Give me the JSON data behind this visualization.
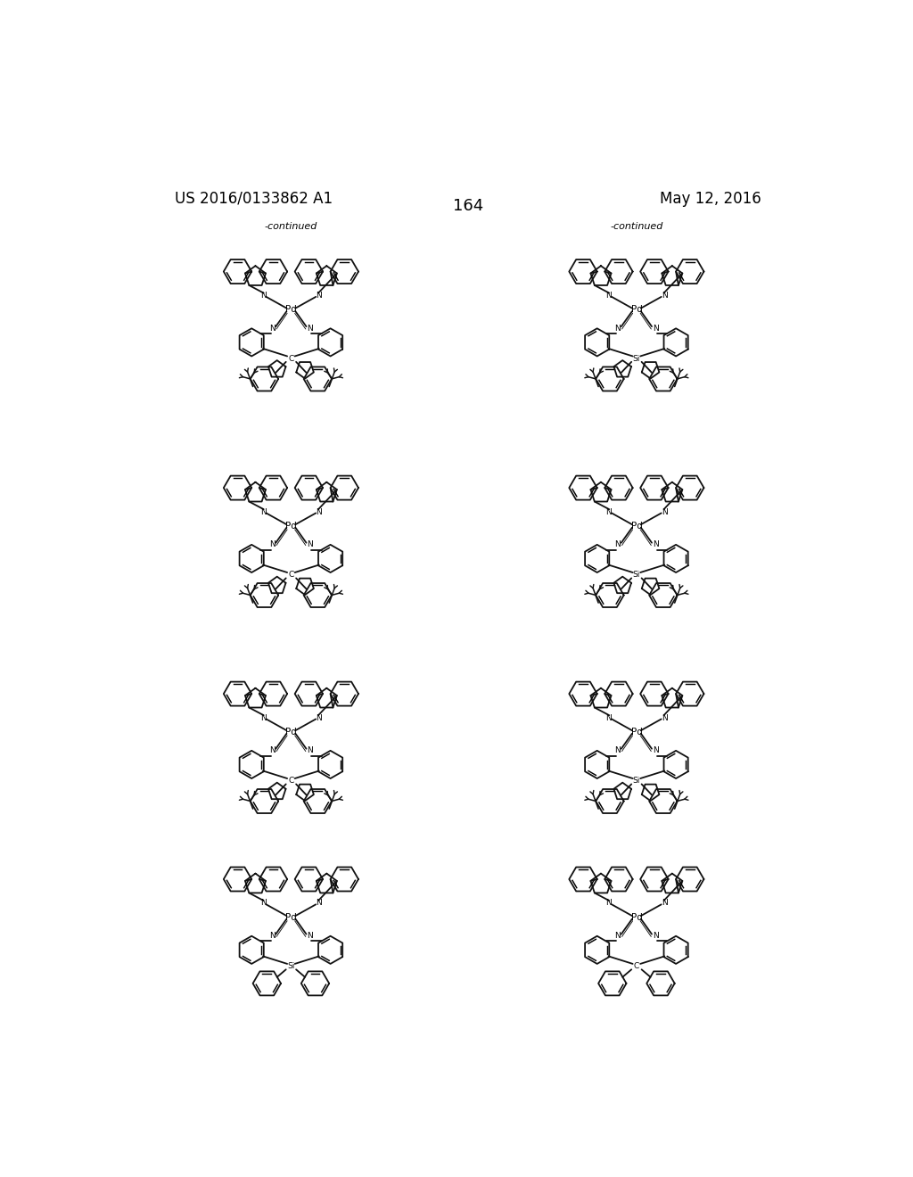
{
  "patent_number": "US 2016/0133862 A1",
  "date": "May 12, 2016",
  "page_number": "164",
  "background_color": "#ffffff",
  "text_color": "#000000",
  "continued_label": "-continued",
  "structures": [
    {
      "center_atom": "Pd",
      "bridge_atom": "C",
      "has_tbu": true,
      "continued": true,
      "col": 0,
      "row": 0
    },
    {
      "center_atom": "Pd",
      "bridge_atom": "Si",
      "has_tbu": true,
      "continued": true,
      "col": 1,
      "row": 0
    },
    {
      "center_atom": "Pd",
      "bridge_atom": "C",
      "has_tbu": true,
      "continued": false,
      "col": 0,
      "row": 1
    },
    {
      "center_atom": "Pd",
      "bridge_atom": "Si",
      "has_tbu": true,
      "continued": false,
      "col": 1,
      "row": 1
    },
    {
      "center_atom": "Pd",
      "bridge_atom": "C",
      "has_tbu": true,
      "continued": false,
      "col": 0,
      "row": 2
    },
    {
      "center_atom": "Pd",
      "bridge_atom": "Si",
      "has_tbu": true,
      "continued": false,
      "col": 1,
      "row": 2
    },
    {
      "center_atom": "Pd",
      "bridge_atom": "Si",
      "has_tbu": false,
      "continued": false,
      "col": 0,
      "row": 3
    },
    {
      "center_atom": "Pd",
      "bridge_atom": "C",
      "has_tbu": false,
      "continued": false,
      "col": 1,
      "row": 3
    }
  ]
}
